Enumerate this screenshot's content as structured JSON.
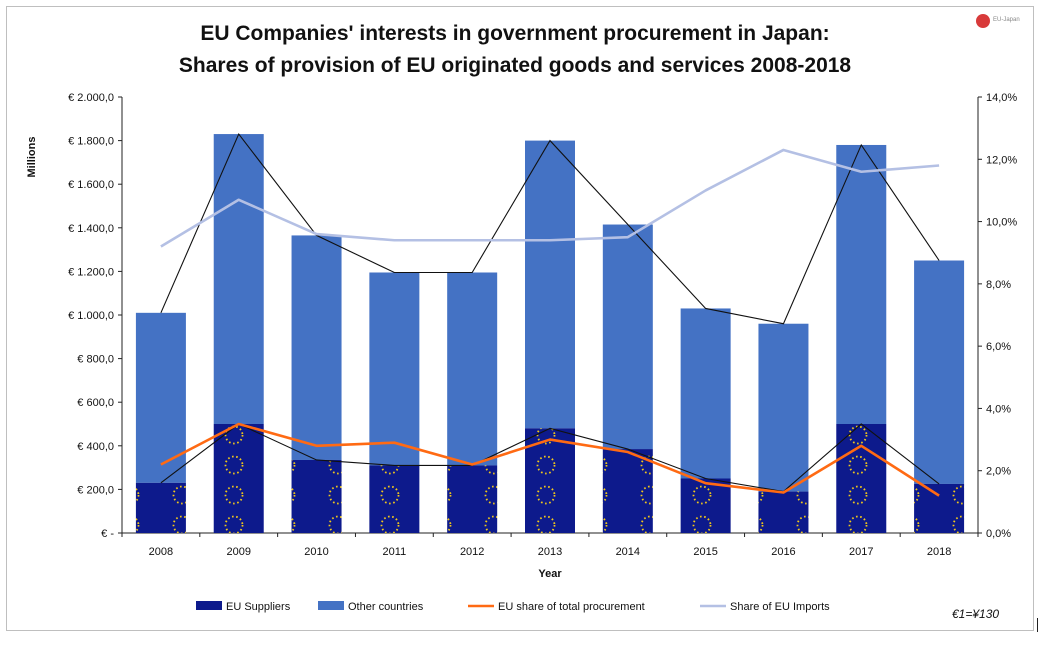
{
  "title_line1": "EU Companies' interests in government procurement in Japan:",
  "title_line2": "Shares of provision of EU originated goods and services 2008-2018",
  "logo_text": "EU-Japan",
  "note": "€1=¥130",
  "chart_data": {
    "type": "bar",
    "stacked": true,
    "categories": [
      "2008",
      "2009",
      "2010",
      "2011",
      "2012",
      "2013",
      "2014",
      "2015",
      "2016",
      "2017",
      "2018"
    ],
    "xlabel": "Year",
    "ylabel": "Millions",
    "ylim": [
      0,
      2000
    ],
    "y_ticks": [
      "€ -",
      "€ 200,0",
      "€ 400,0",
      "€ 600,0",
      "€ 800,0",
      "€ 1.000,0",
      "€ 1.200,0",
      "€ 1.400,0",
      "€ 1.600,0",
      "€ 1.800,0",
      "€ 2.000,0"
    ],
    "y2lim": [
      0,
      14
    ],
    "y2_ticks": [
      "0,0%",
      "2,0%",
      "4,0%",
      "6,0%",
      "8,0%",
      "10,0%",
      "12,0%",
      "14,0%"
    ],
    "totals": [
      1010,
      1830,
      1365,
      1195,
      1195,
      1800,
      1415,
      1030,
      960,
      1780,
      1250
    ],
    "series": [
      {
        "name": "EU Suppliers",
        "type": "bar",
        "axis": "left",
        "color": "#0d1a8c",
        "values": [
          230,
          500,
          335,
          310,
          310,
          480,
          385,
          250,
          190,
          500,
          225
        ]
      },
      {
        "name": "Other countries",
        "type": "bar",
        "axis": "left",
        "color": "#4472c4",
        "values": [
          780,
          1330,
          1030,
          885,
          885,
          1320,
          1030,
          780,
          770,
          1280,
          1025
        ]
      },
      {
        "name": "EU share of total procurement",
        "type": "line",
        "axis": "right",
        "color": "#ff6a13",
        "values": [
          2.2,
          3.5,
          2.8,
          2.9,
          2.2,
          3.0,
          2.6,
          1.6,
          1.3,
          2.8,
          1.2
        ]
      },
      {
        "name": "Share of EU Imports",
        "type": "line",
        "axis": "right",
        "color": "#b4c0e4",
        "values": [
          9.2,
          10.7,
          9.6,
          9.4,
          9.4,
          9.4,
          9.5,
          11.0,
          12.3,
          11.6,
          11.8
        ]
      }
    ],
    "grid": false,
    "legend": "bottom"
  }
}
